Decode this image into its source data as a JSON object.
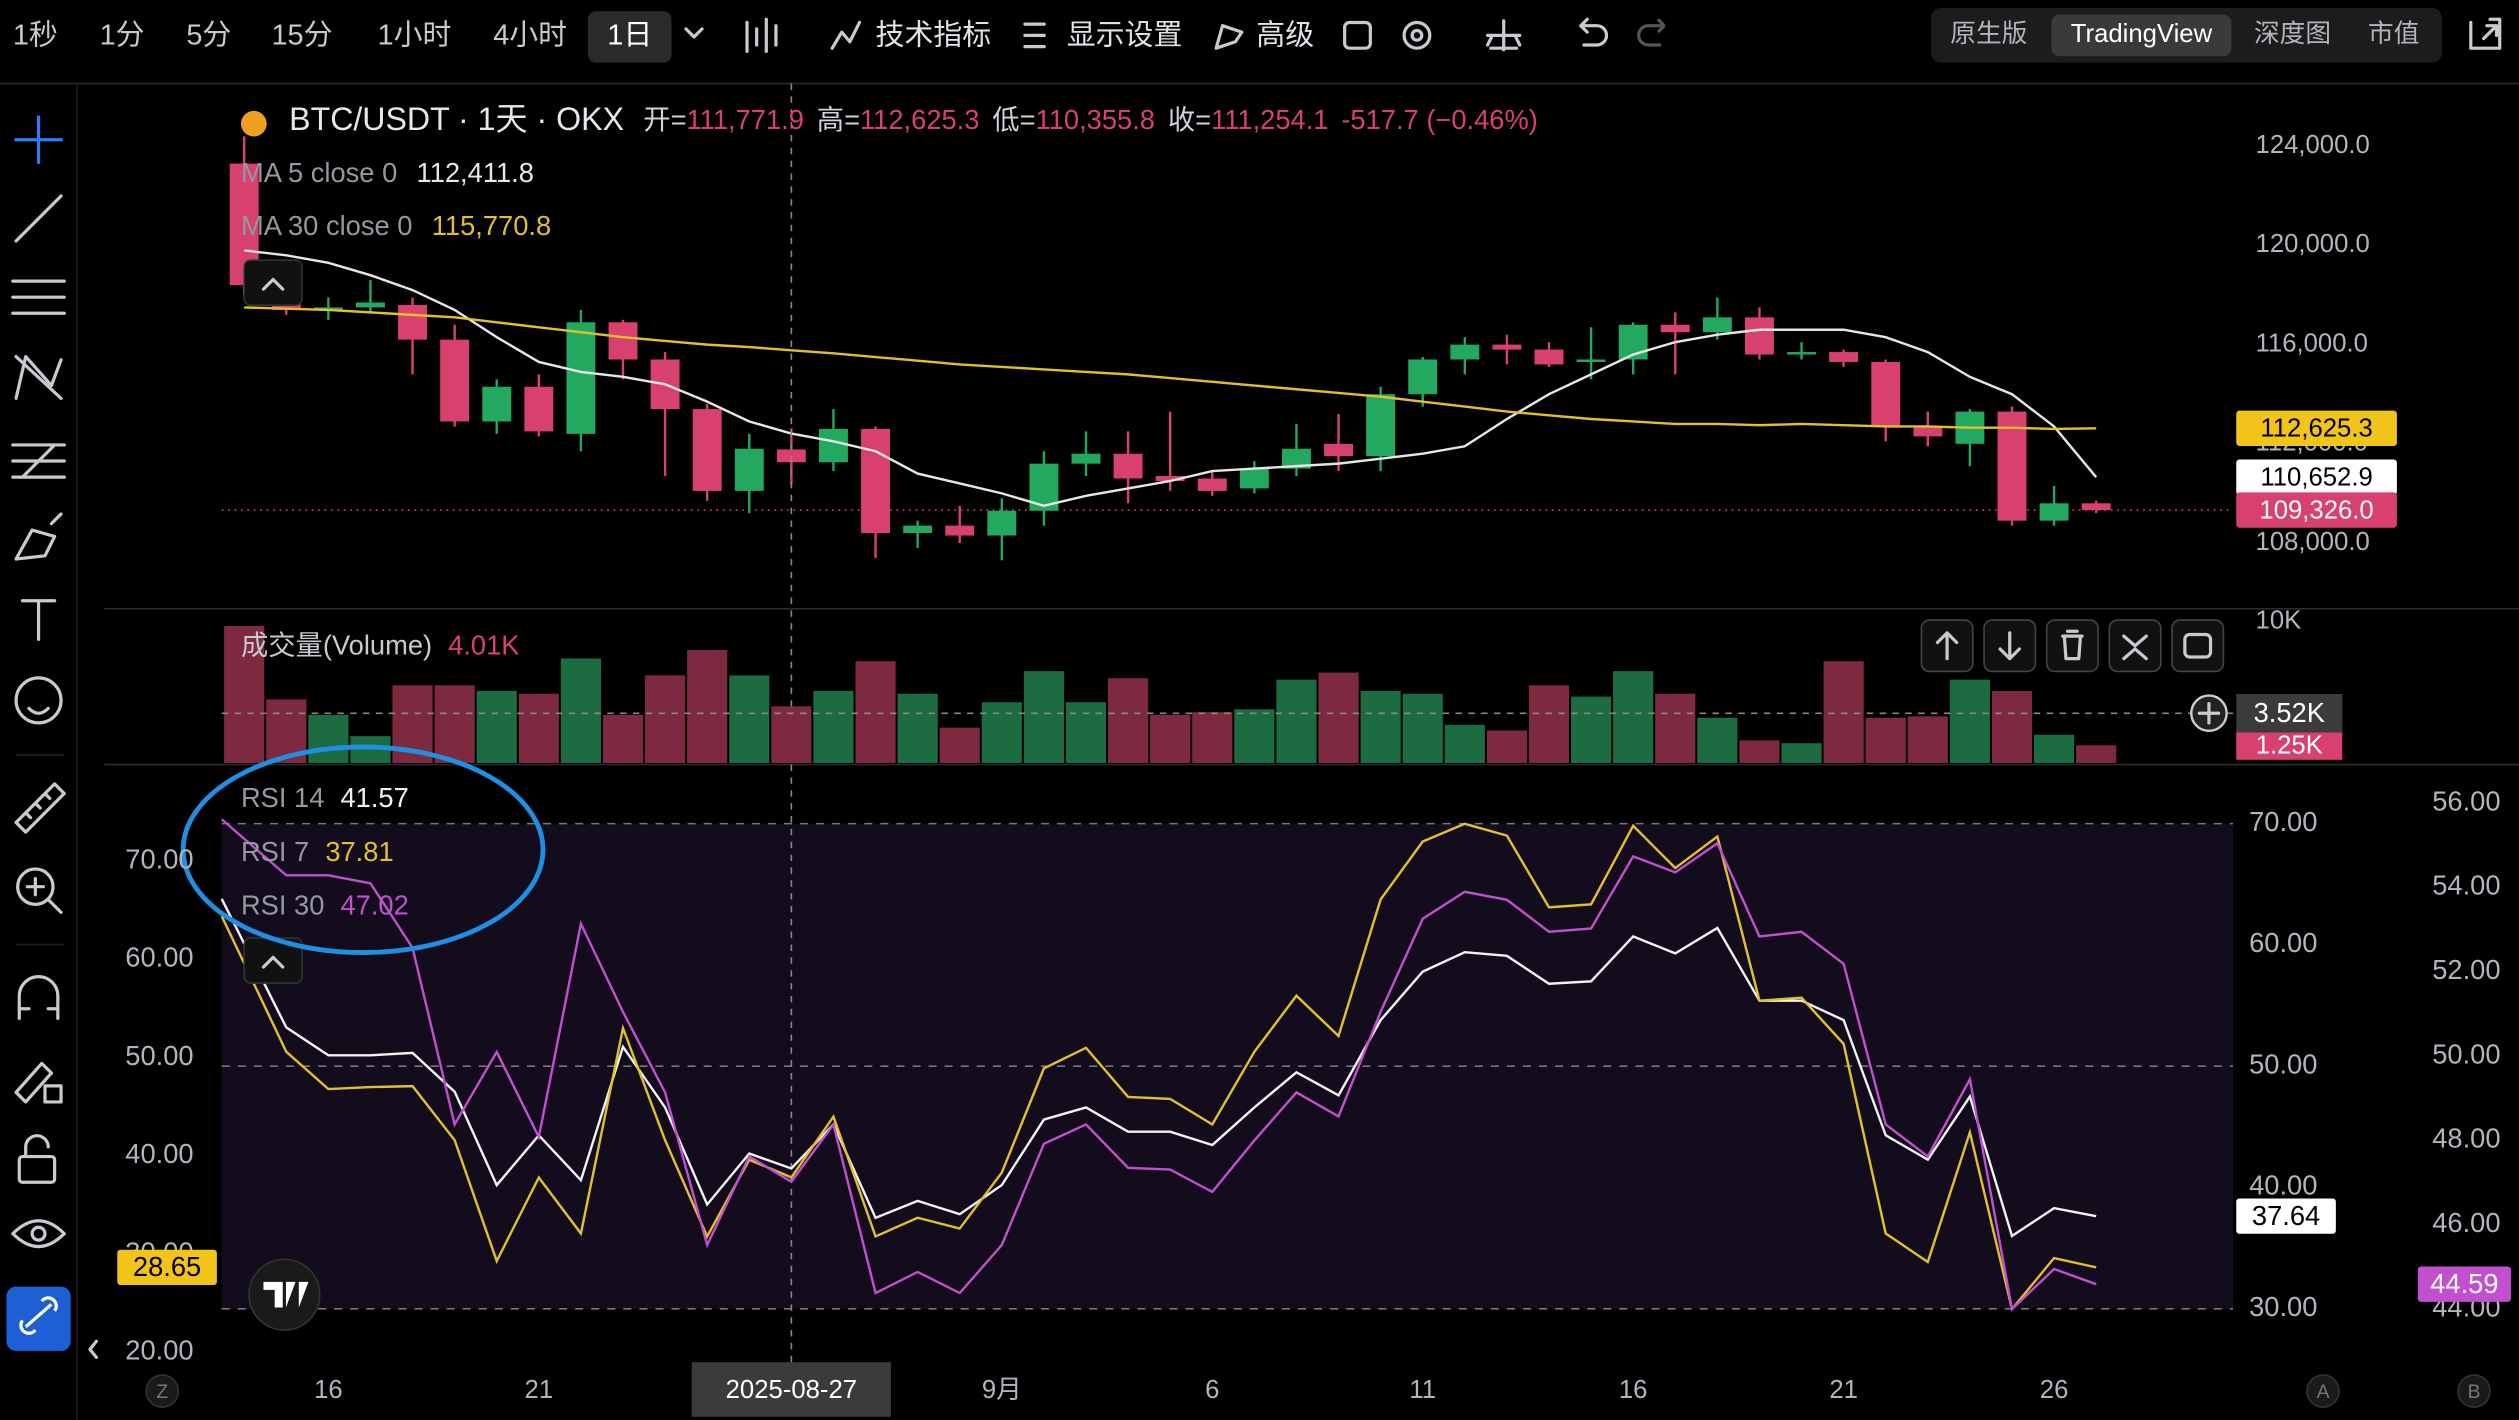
{
  "toolbar": {
    "intervals": [
      "1秒",
      "1分",
      "5分",
      "15分",
      "1小时",
      "4小时",
      "1日"
    ],
    "active": 6,
    "menus": [
      "技术指标",
      "显示设置",
      "高级"
    ],
    "views": [
      "原生版",
      "TradingView",
      "深度图",
      "市值"
    ],
    "active_view": 1
  },
  "axis_buttons": [
    "Z",
    "A",
    "B"
  ],
  "chart_data": [
    {
      "type": "candlestick",
      "title": "BTC/USDT · 1天 · OKX",
      "ohlc_legend": [
        {
          "label": "开=",
          "value": "111,771.9"
        },
        {
          "label": "高=",
          "value": "112,625.3"
        },
        {
          "label": "低=",
          "value": "110,355.8"
        },
        {
          "label": "收=",
          "value": "111,254.1"
        }
      ],
      "change": "-517.7 (−0.46%)",
      "categories": [
        null,
        null,
        "16",
        null,
        null,
        null,
        null,
        "21",
        null,
        null,
        null,
        null,
        null,
        "2025-08-27",
        null,
        null,
        null,
        null,
        "9月",
        null,
        null,
        null,
        null,
        "6",
        null,
        null,
        null,
        null,
        "11",
        null,
        null,
        null,
        null,
        "16",
        null,
        null,
        null,
        null,
        "21",
        null,
        null,
        null,
        null,
        "26",
        null
      ],
      "crosshair_index": 13,
      "open": [
        123300,
        118300,
        117400,
        117500,
        117600,
        116200,
        112900,
        114300,
        112400,
        116900,
        115400,
        113400,
        110100,
        111771.9,
        111254.1,
        112600,
        108400,
        108700,
        108300,
        109300,
        111200,
        111600,
        110700,
        110600,
        110200,
        111000,
        112000,
        111500,
        114000,
        115400,
        116000,
        115800,
        115300,
        115400,
        116800,
        116500,
        117100,
        115600,
        115700,
        115300,
        112700,
        112000,
        113300,
        108900,
        109600
      ],
      "high": [
        124400,
        119200,
        117900,
        118600,
        117900,
        116800,
        114600,
        114800,
        117400,
        117000,
        115700,
        113600,
        112400,
        112625.3,
        113400,
        112700,
        108900,
        109500,
        109800,
        111700,
        112500,
        112500,
        113300,
        110900,
        111300,
        112800,
        113200,
        114300,
        115500,
        116300,
        116400,
        116100,
        116700,
        116900,
        117300,
        117900,
        117500,
        116100,
        115800,
        115400,
        113300,
        113400,
        113500,
        110300,
        109700
      ],
      "low": [
        118000,
        117200,
        117000,
        117300,
        114800,
        112700,
        112400,
        112300,
        111700,
        114600,
        110700,
        109700,
        109200,
        110355.8,
        110900,
        107400,
        107800,
        108000,
        107300,
        108700,
        110700,
        109600,
        110100,
        109900,
        110000,
        110700,
        110900,
        110900,
        113500,
        114800,
        115200,
        115100,
        114600,
        114800,
        114800,
        116200,
        115400,
        115400,
        115100,
        112100,
        111900,
        111100,
        108700,
        108700,
        109200
      ],
      "close": [
        118400,
        117400,
        117500,
        117700,
        116200,
        112900,
        114300,
        112500,
        116900,
        115400,
        113400,
        110100,
        111800,
        111254.1,
        112600,
        108400,
        108700,
        108300,
        109300,
        111200,
        111600,
        110600,
        110500,
        110100,
        111000,
        111800,
        111500,
        114000,
        115400,
        116000,
        115800,
        115200,
        115400,
        116800,
        116500,
        117100,
        115600,
        115700,
        115300,
        112700,
        112300,
        113300,
        108900,
        109600,
        109326
      ],
      "up_color": "#22a85f",
      "down_color": "#d8406e",
      "close_label": "109,326.0",
      "series": [
        {
          "name": "MA 5 close 0",
          "color": "#e6e6e6",
          "legend_value": "112,411.8",
          "last_label": "110,652.9",
          "values": [
            119800,
            119600,
            119300,
            118800,
            118200,
            117400,
            116300,
            115300,
            114900,
            114700,
            114400,
            113700,
            112900,
            112411.8,
            112100,
            111700,
            110800,
            110400,
            110000,
            109500,
            109900,
            110200,
            110500,
            110900,
            111000,
            111100,
            111200,
            111400,
            111600,
            111900,
            113000,
            114000,
            114800,
            115600,
            116100,
            116400,
            116600,
            116600,
            116600,
            116300,
            115700,
            114700,
            114000,
            112700,
            110652.9
          ]
        },
        {
          "name": "MA 30 close 0",
          "color": "#e2c02c",
          "legend_value": "115,770.8",
          "last_label": "112,625.3",
          "values": [
            117500,
            117450,
            117400,
            117300,
            117200,
            117100,
            116900,
            116700,
            116500,
            116300,
            116150,
            116000,
            115900,
            115770.8,
            115650,
            115500,
            115350,
            115200,
            115100,
            115000,
            114900,
            114800,
            114650,
            114500,
            114350,
            114200,
            114050,
            113900,
            113700,
            113500,
            113300,
            113150,
            113000,
            112900,
            112800,
            112800,
            112750,
            112800,
            112750,
            112700,
            112700,
            112650,
            112650,
            112600,
            112625.3
          ]
        }
      ],
      "ylim": [
        105410,
        126530
      ],
      "yticks": [
        {
          "value": 108000,
          "label": "108,000.0"
        },
        {
          "value": 112000,
          "label": "112,000.0"
        },
        {
          "value": 116000,
          "label": "116,000.0"
        },
        {
          "value": 120000,
          "label": "120,000.0"
        },
        {
          "value": 124000,
          "label": "124,000.0"
        }
      ]
    },
    {
      "type": "bar",
      "title": "成交量(Volume)",
      "legend_value": "4.01K",
      "values": [
        9.7,
        4.5,
        3.4,
        1.9,
        5.5,
        5.5,
        5.1,
        4.9,
        7.4,
        3.4,
        6.2,
        8.0,
        6.2,
        4.01,
        5.1,
        7.2,
        4.9,
        2.5,
        4.3,
        6.5,
        4.3,
        6.0,
        3.4,
        3.6,
        3.8,
        5.9,
        6.4,
        5.1,
        4.9,
        2.7,
        2.3,
        5.5,
        4.7,
        6.5,
        4.9,
        3.2,
        1.6,
        1.4,
        7.2,
        3.2,
        3.3,
        5.9,
        5.1,
        2.0,
        1.25
      ],
      "up_color": "#1d6b40",
      "down_color": "#7d2a40",
      "last_label": "1.25K",
      "crosshair": {
        "value": 3.52,
        "label": "3.52K"
      },
      "ylim": [
        0,
        10.57
      ],
      "yticks": [
        {
          "value": 10,
          "label": "10K"
        }
      ]
    },
    {
      "type": "line",
      "series": [
        {
          "name": "RSI 14",
          "color": "#f2f2f2",
          "axis": "y",
          "legend_value": "41.57",
          "last_label": "37.64",
          "values": [
            63.8,
            53.2,
            50.9,
            50.9,
            51.1,
            47.9,
            40.2,
            44.3,
            40.6,
            51.6,
            46.6,
            38.6,
            42.8,
            41.57,
            45.2,
            37.5,
            38.9,
            37.8,
            40.2,
            45.6,
            46.6,
            44.6,
            44.6,
            43.5,
            46.6,
            49.5,
            47.6,
            53.8,
            57.8,
            59.4,
            59.1,
            56.8,
            57.0,
            60.7,
            59.3,
            61.4,
            55.4,
            55.4,
            53.8,
            44.3,
            42.3,
            47.5,
            36.0,
            38.3,
            37.64
          ]
        },
        {
          "name": "RSI 7",
          "color": "#e2c02c",
          "axis": "y3",
          "legend_value": "37.81",
          "last_label": "28.65",
          "values": [
            64.4,
            50.6,
            46.8,
            47.0,
            47.1,
            41.6,
            29.3,
            37.8,
            32.1,
            53.0,
            41.6,
            31.8,
            39.6,
            37.81,
            44.0,
            31.8,
            33.7,
            32.6,
            38.3,
            48.9,
            51.0,
            46.0,
            45.8,
            43.2,
            50.6,
            56.3,
            52.2,
            66.1,
            72.0,
            73.8,
            72.6,
            65.3,
            65.6,
            73.6,
            69.3,
            72.5,
            55.8,
            56.1,
            51.4,
            32.1,
            29.2,
            42.4,
            24.4,
            29.6,
            28.65
          ]
        },
        {
          "name": "RSI 30",
          "color": "#c24fd0",
          "axis": "y2",
          "legend_value": "47.02",
          "last_label": "44.59",
          "values": [
            55.62,
            54.29,
            54.29,
            54.1,
            52.57,
            48.38,
            50.1,
            48.08,
            53.14,
            51.05,
            49.14,
            45.52,
            47.62,
            47.02,
            48.38,
            44.38,
            44.88,
            44.38,
            45.52,
            47.92,
            48.38,
            47.35,
            47.31,
            46.78,
            48.0,
            49.14,
            48.57,
            51.05,
            53.26,
            53.9,
            53.71,
            52.95,
            53.03,
            54.74,
            54.36,
            55.05,
            52.84,
            52.95,
            52.19,
            48.38,
            47.62,
            49.45,
            44.0,
            44.95,
            44.59
          ]
        }
      ],
      "levels": [
        70,
        50,
        30
      ],
      "ylim": [
        25.6,
        74.6
      ],
      "yticks": [
        {
          "value": 30,
          "label": "30.00"
        },
        {
          "value": 40,
          "label": "40.00"
        },
        {
          "value": 50,
          "label": "50.00"
        },
        {
          "value": 60,
          "label": "60.00"
        },
        {
          "value": 70,
          "label": "70.00"
        }
      ],
      "y2lim": [
        42.74,
        56.84
      ],
      "y2ticks": [
        {
          "value": 44,
          "label": "44.00"
        },
        {
          "value": 46,
          "label": "46.00"
        },
        {
          "value": 48,
          "label": "48.00"
        },
        {
          "value": 50,
          "label": "50.00"
        },
        {
          "value": 52,
          "label": "52.00"
        },
        {
          "value": 54,
          "label": "54.00"
        },
        {
          "value": 56,
          "label": "56.00"
        }
      ],
      "y3lim": [
        19.0,
        79.5
      ],
      "y3ticks": [
        {
          "value": 20,
          "label": "20.00"
        },
        {
          "value": 30,
          "label": "30.00"
        },
        {
          "value": 40,
          "label": "40.00"
        },
        {
          "value": 50,
          "label": "50.00"
        },
        {
          "value": 60,
          "label": "60.00"
        },
        {
          "value": 70,
          "label": "70.00"
        }
      ]
    }
  ]
}
